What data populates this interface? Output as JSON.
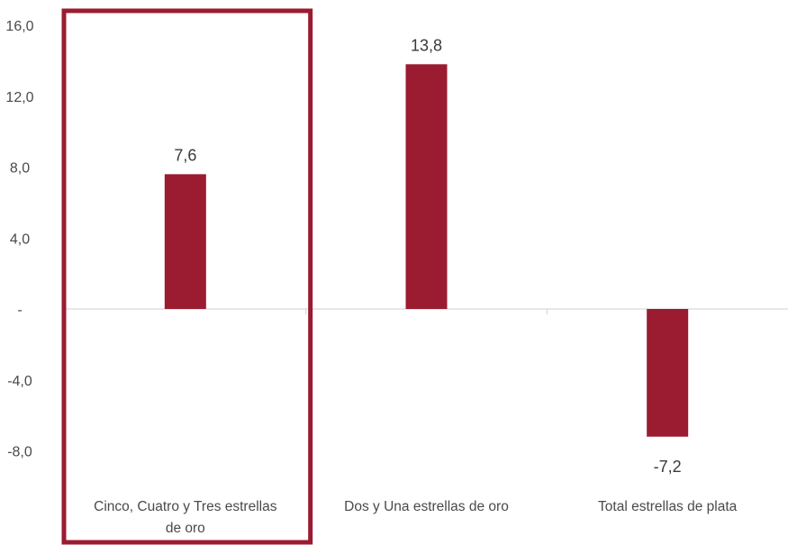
{
  "chart_data": {
    "type": "bar",
    "categories": [
      [
        "Cinco, Cuatro y Tres estrellas",
        "de oro"
      ],
      [
        "Dos y Una estrellas de oro"
      ],
      [
        "Total estrellas de plata"
      ]
    ],
    "values": [
      7.6,
      13.8,
      -7.2
    ],
    "data_labels": [
      "7,6",
      "13,8",
      "-7,2"
    ],
    "ylim": [
      -10,
      16
    ],
    "yticks": [
      16,
      12,
      8,
      4,
      0,
      -4,
      -8
    ],
    "ytick_labels": [
      "16,0",
      "12,0",
      "8,0",
      "4,0",
      "-",
      "-4,0",
      "-8,0"
    ],
    "title": "",
    "xlabel": "",
    "ylabel": "",
    "grid": false,
    "legend": "none",
    "highlight_category_index": 0,
    "colors": {
      "bar": "#9b1b31",
      "highlight": "#9b1b31",
      "axis": "#d0d0d0"
    }
  }
}
